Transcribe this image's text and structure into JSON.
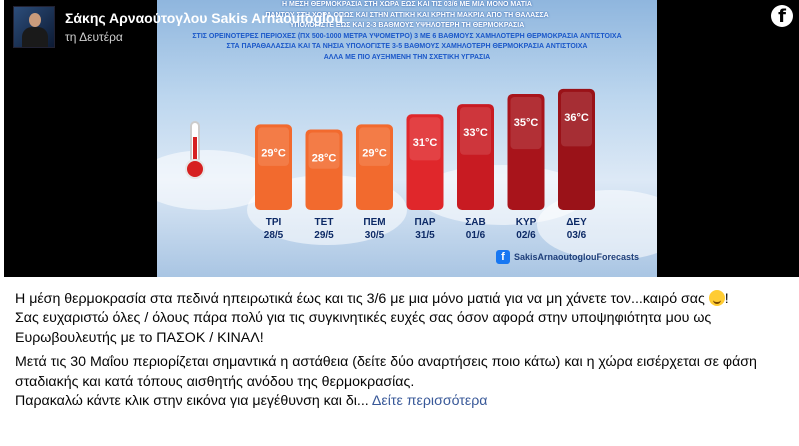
{
  "author": {
    "name": "Σάκης Αρναούτογλου Sakis Arnaoutoglou",
    "date": "τη Δευτέρα"
  },
  "forecast": {
    "headline_lines": [
      "Η ΜΕΣΗ ΘΕΡΜΟΚΡΑΣΙΑ ΣΤΗ ΧΩΡΑ ΕΩΣ ΚΑΙ ΤΙΣ 03/6 ΜΕ ΜΙΑ ΜΟΝΟ ΜΑΤΙΑ",
      "ΠΑΝΤΟΥ ΣΤΗ ΧΩΡΑ ΟΠΩΣ ΚΑΙ ΣΤΗΝ ΑΤΤΙΚΗ ΚΑΙ ΚΡΗΤΗ ΜΑΚΡΙΑ ΑΠΟ ΤΗ ΘΑΛΑΣΣΑ",
      "ΥΠΟΛΟΓΙΣΤΕ ΕΩΣ ΚΑΙ 2-3 ΒΑΘΜΟΥΣ ΥΨΗΛΟΤΕΡΗ ΤΗ ΘΕΡΜΟΚΡΑΣΙΑ",
      "ΣΤΙΣ ΟΡΕΙΝΟΤΕΡΕΣ ΠΕΡΙΟΧΕΣ (ΠΧ 500-1000 ΜΕΤΡΑ ΥΨΟΜΕΤΡΟ) 3 ΜΕ 6 ΒΑΘΜΟΥΣ ΧΑΜΗΛΟΤΕΡΗ ΘΕΡΜΟΚΡΑΣΙΑ ΑΝΤΙΣΤΟΙΧΑ",
      "ΣΤΑ ΠΑΡΑΘΑΛΑΣΣΙΑ ΚΑΙ ΤΑ ΝΗΣΙΑ ΥΠΟΛΟΓΙΣΤΕ 3-5 ΒΑΘΜΟΥΣ ΧΑΜΗΛΟΤΕΡΗ ΘΕΡΜΟΚΡΑΣΙΑ ΑΝΤΙΣΤΟΙΧΑ",
      "ΑΛΛΑ ΜΕ ΠΙΟ ΑΥΞΗΜΕΝΗ ΤΗΝ ΣΧΕΤΙΚΗ ΥΓΡΑΣΙΑ"
    ],
    "facebook_tag": "SakisArnaoutoglouForecasts"
  },
  "chart_data": {
    "type": "bar",
    "categories": [
      "ΤΡΙ 28/5",
      "ΤΕΤ 29/5",
      "ΠΕΜ 30/5",
      "ΠΑΡ 31/5",
      "ΣΑΒ 01/6",
      "ΚΥΡ 02/6",
      "ΔΕΥ 03/6"
    ],
    "days": [
      "ΤΡΙ",
      "ΤΕΤ",
      "ΠΕΜ",
      "ΠΑΡ",
      "ΣΑΒ",
      "ΚΥΡ",
      "ΔΕΥ"
    ],
    "dates": [
      "28/5",
      "29/5",
      "30/5",
      "31/5",
      "01/6",
      "02/6",
      "03/6"
    ],
    "values": [
      29,
      28,
      29,
      31,
      33,
      35,
      36
    ],
    "value_labels": [
      "29°C",
      "28°C",
      "29°C",
      "31°C",
      "33°C",
      "35°C",
      "36°C"
    ],
    "bar_colors": [
      "#f26a2e",
      "#f26a2e",
      "#f26a2e",
      "#e0272b",
      "#c81b22",
      "#a8141b",
      "#9a1218"
    ],
    "ylim": [
      20,
      40
    ]
  },
  "post": {
    "paragraph1": "Η μέση θερμοκρασία στα πεδινά ηπειρωτικά έως και τις 3/6 με μια μόνο ματιά για να μη χάνετε τον...καιρό σας",
    "paragraph1_end": "!",
    "paragraph2": "Σας ευχαριστώ όλες / όλους πάρα πολύ για τις συγκινητικές ευχές σας όσον αφορά στην υποψηφιότητα μου ως Ευρωβουλευτής με το ΠΑΣΟΚ / ΚΙΝΑΛ!",
    "paragraph3": "Μετά τις 30 Μαΐου περιορίζεται σημαντικά η αστάθεια (δείτε δύο αναρτήσεις ποιο κάτω) και η χώρα εισέρχεται σε φάση σταδιακής και κατά τόπους αισθητής ανόδου της θερμοκρασίας.",
    "paragraph4": "Παρακαλώ κάντε κλικ στην εικόνα για μεγέθυνση και δι...",
    "see_more": "Δείτε περισσότερα"
  },
  "icons": {
    "emoji": "smiling-face-icon",
    "facebook": "facebook-logo-icon"
  }
}
